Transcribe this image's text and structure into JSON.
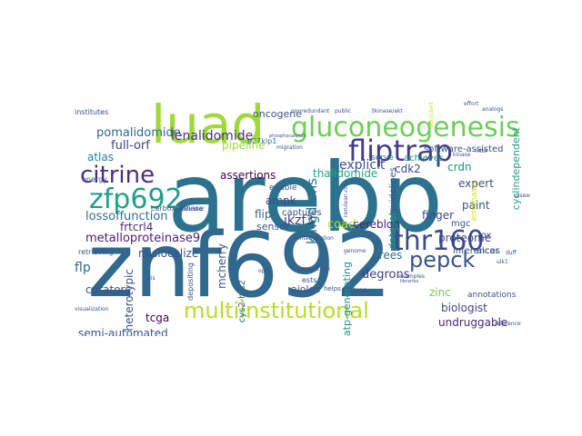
{
  "cloud": {
    "words": [
      {
        "text": "arebp",
        "color": "#2c728e"
      },
      {
        "text": "znf692",
        "color": "#31688e"
      },
      {
        "text": "luad",
        "color": "#a0da39"
      },
      {
        "text": "gluconeogenesis",
        "color": "#6ece58"
      },
      {
        "text": "fliptrap",
        "color": "#433e85"
      },
      {
        "text": "citrine",
        "color": "#46327e"
      },
      {
        "text": "zfp692",
        "color": "#1fa187"
      },
      {
        "text": "pepck",
        "color": "#3b528b"
      },
      {
        "text": "thr160",
        "color": "#3e4989"
      },
      {
        "text": "multiinstitutional",
        "color": "#b5de2b"
      },
      {
        "text": "kingdoms",
        "color": "#2a788e"
      },
      {
        "text": "lenalidomide",
        "color": "#46327e"
      },
      {
        "text": "oncogene",
        "color": "#3b528b"
      },
      {
        "text": "explicit",
        "color": "#3b528b"
      },
      {
        "text": "full-orf",
        "color": "#404387"
      },
      {
        "text": "pomalidomide",
        "color": "#31688e"
      },
      {
        "text": "assertions",
        "color": "#440154"
      },
      {
        "text": "thalidomide",
        "color": "#22a884"
      },
      {
        "text": "atlas",
        "color": "#26828e"
      },
      {
        "text": "pipeline",
        "color": "#a0da39"
      },
      {
        "text": "p27kip1",
        "color": "#2c728e"
      },
      {
        "text": "institutes",
        "color": "#3e4989"
      },
      {
        "text": "cdk2",
        "color": "#3e4989"
      },
      {
        "text": "software-assisted",
        "color": "#3b528b"
      },
      {
        "text": "achieves",
        "color": "#21918c"
      },
      {
        "text": "serve",
        "color": "#2c728e"
      },
      {
        "text": "crdn",
        "color": "#21918c"
      },
      {
        "text": "expert",
        "color": "#3b528b"
      },
      {
        "text": "cyclindependent",
        "color": "#1fa187"
      },
      {
        "text": "paint",
        "color": "#3b528b"
      },
      {
        "text": "lossoffunction",
        "color": "#2c728e"
      },
      {
        "text": "frtcrl4",
        "color": "#482878"
      },
      {
        "text": "ampk",
        "color": "#3e4989"
      },
      {
        "text": "flip",
        "color": "#31688e"
      },
      {
        "text": "sensor",
        "color": "#3b528b"
      },
      {
        "text": "coad",
        "color": "#b5de2b"
      },
      {
        "text": "cereblon",
        "color": "#481f70"
      },
      {
        "text": "mgc",
        "color": "#3b528b"
      },
      {
        "text": "proteome",
        "color": "#3e4989"
      },
      {
        "text": "finger",
        "color": "#3e4989"
      },
      {
        "text": "metalloproteinase9",
        "color": "#481f70"
      },
      {
        "text": "mislocalize",
        "color": "#3b528b"
      },
      {
        "text": "ikzf3",
        "color": "#433e85"
      },
      {
        "text": "lox",
        "color": "#404387"
      },
      {
        "text": "flp",
        "color": "#31688e"
      },
      {
        "text": "zinc",
        "color": "#6ece58"
      },
      {
        "text": "degrons",
        "color": "#433e85"
      },
      {
        "text": "aicar",
        "color": "#3b528b"
      },
      {
        "text": "inferences",
        "color": "#3b528b"
      },
      {
        "text": "curators",
        "color": "#3b528b"
      },
      {
        "text": "heterotypic",
        "color": "#3b528b"
      },
      {
        "text": "mcherry",
        "color": "#3b528b"
      },
      {
        "text": "tcga",
        "color": "#440154"
      },
      {
        "text": "aiolos",
        "color": "#3b528b"
      },
      {
        "text": "biologist",
        "color": "#3e4989"
      },
      {
        "text": "semi-automated",
        "color": "#3b528b"
      },
      {
        "text": "undruggable",
        "color": "#482878"
      },
      {
        "text": "trees",
        "color": "#2c728e"
      },
      {
        "text": "retrieving",
        "color": "#3b528b"
      },
      {
        "text": "cys2-his2",
        "color": "#31688e"
      },
      {
        "text": "enable",
        "color": "#3b528b"
      },
      {
        "text": "captures",
        "color": "#3b528b"
      },
      {
        "text": "energy",
        "color": "#3b528b"
      },
      {
        "text": "carboxykinase",
        "color": "#3b528b"
      },
      {
        "text": "depositing",
        "color": "#3b528b"
      },
      {
        "text": "guidelines",
        "color": "#3b528b"
      },
      {
        "text": "dataset",
        "color": "#21918c"
      },
      {
        "text": "atp-generating",
        "color": "#21918c"
      },
      {
        "text": "emphasis",
        "color": "#d8e219"
      },
      {
        "text": "annotations",
        "color": "#3b528b"
      },
      {
        "text": "nonredundant",
        "color": "#3b528b"
      },
      {
        "text": "3kinase/akt",
        "color": "#3b528b"
      },
      {
        "text": "public",
        "color": "#3b528b"
      },
      {
        "text": "abundant",
        "color": "#d8e219"
      },
      {
        "text": "analogs",
        "color": "#3b528b"
      },
      {
        "text": "interrogation",
        "color": "#3b528b"
      },
      {
        "text": "phosphocalcium",
        "color": "#3b528b"
      },
      {
        "text": "cerulean-cm",
        "color": "#3b528b"
      },
      {
        "text": "tma",
        "color": "#3b528b"
      },
      {
        "text": "examples",
        "color": "#3b528b"
      },
      {
        "text": "indicator",
        "color": "#3b528b"
      },
      {
        "text": "visualization",
        "color": "#3b528b"
      },
      {
        "text": "migration",
        "color": "#3b528b"
      },
      {
        "text": "helps",
        "color": "#3b528b"
      },
      {
        "text": "genome",
        "color": "#3b528b"
      },
      {
        "text": "duff",
        "color": "#3b528b"
      },
      {
        "text": "opts",
        "color": "#3b528b"
      },
      {
        "text": "reference",
        "color": "#3b528b"
      },
      {
        "text": "libraries",
        "color": "#3b528b"
      },
      {
        "text": "diseas",
        "color": "#3b528b"
      },
      {
        "text": "perspective",
        "color": "#3b528b"
      },
      {
        "text": "effort",
        "color": "#3b528b"
      },
      {
        "text": "ests",
        "color": "#3b528b"
      },
      {
        "text": "mtor",
        "color": "#3b528b"
      },
      {
        "text": "ulk1",
        "color": "#3b528b"
      },
      {
        "text": "gis",
        "color": "#3b528b"
      },
      {
        "text": "kinase",
        "color": "#3b528b"
      }
    ]
  }
}
